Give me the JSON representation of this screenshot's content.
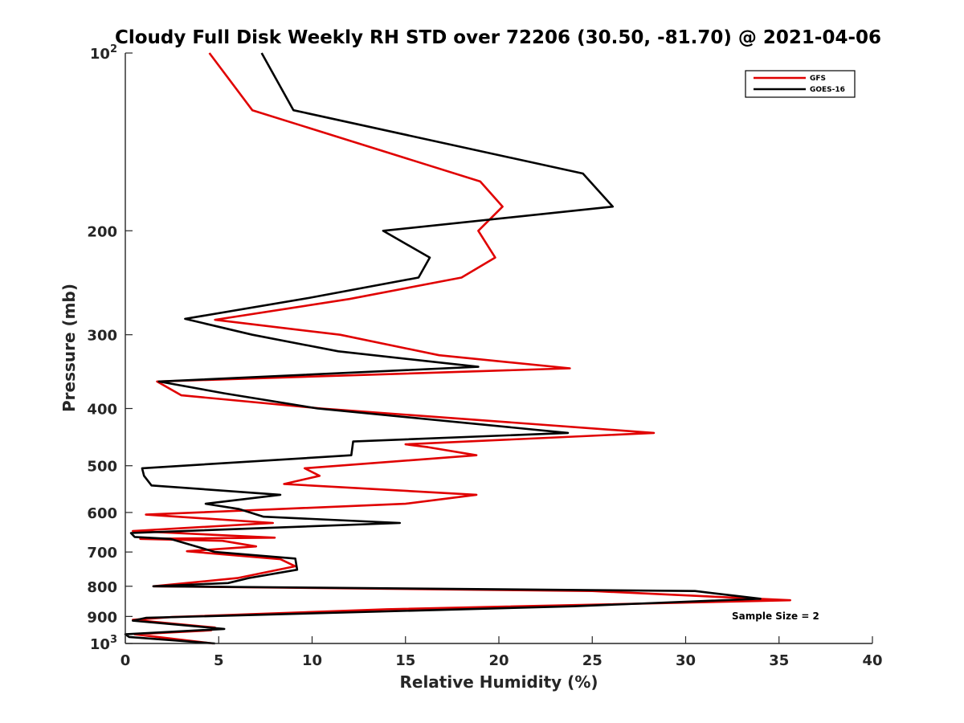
{
  "chart_data": {
    "type": "line",
    "title": "Cloudy Full Disk Weekly RH STD over 72206 (30.50, -81.70) @ 2021-04-06",
    "xlabel": "Relative Humidity (%)",
    "ylabel": "Pressure (mb)",
    "xlim": [
      0,
      40
    ],
    "ylim": [
      100,
      1000
    ],
    "yscale": "log",
    "yreverse": true,
    "x_ticks": [
      0,
      5,
      10,
      15,
      20,
      25,
      30,
      35,
      40
    ],
    "x_tick_labels": [
      "0",
      "5",
      "10",
      "15",
      "20",
      "25",
      "30",
      "35",
      "40"
    ],
    "y_ticks": [
      100,
      200,
      300,
      400,
      500,
      600,
      700,
      800,
      900,
      1000
    ],
    "y_tick_labels": [
      "10²",
      "200",
      "300",
      "400",
      "500",
      "600",
      "700",
      "800",
      "900",
      "10³"
    ],
    "legend_position": "top-right",
    "annotation": "Sample Size = 2",
    "series": [
      {
        "name": "GFS",
        "color": "#e00000",
        "x": [
          4.5,
          6.8,
          19.0,
          20.2,
          18.9,
          19.8,
          18.0,
          12.0,
          4.8,
          11.5,
          16.8,
          23.8,
          1.7,
          3.0,
          10.5,
          28.3,
          15.0,
          16.2,
          18.8,
          9.6,
          10.4,
          8.5,
          18.8,
          15.0,
          1.1,
          7.9,
          0.4,
          8.0,
          0.8,
          5.2,
          7.0,
          3.3,
          8.3,
          9.1,
          6.0,
          1.5,
          25.0,
          35.6,
          14.0,
          2.5,
          0.4,
          4.8,
          4.6,
          0.5,
          4.7
        ],
        "y": [
          100,
          125,
          165,
          182,
          200,
          222,
          240,
          261,
          283,
          300,
          325,
          342,
          360,
          380,
          400,
          440,
          460,
          465,
          480,
          505,
          520,
          537,
          560,
          580,
          605,
          625,
          645,
          662,
          665,
          670,
          685,
          698,
          720,
          740,
          775,
          800,
          815,
          845,
          875,
          902,
          912,
          940,
          950,
          965,
          1000
        ]
      },
      {
        "name": "GOES-16",
        "color": "#000000",
        "x": [
          7.3,
          9.0,
          24.5,
          26.1,
          13.8,
          16.3,
          15.7,
          9.8,
          3.2,
          6.8,
          11.4,
          18.9,
          1.8,
          5.3,
          10.3,
          23.7,
          12.2,
          12.1,
          0.9,
          1.0,
          1.4,
          8.3,
          4.3,
          6.1,
          7.4,
          14.7,
          0.3,
          0.5,
          2.4,
          3.8,
          4.8,
          9.1,
          9.2,
          6.6,
          5.5,
          1.5,
          30.5,
          34.0,
          24.0,
          1.1,
          0.4,
          5.3,
          0.0,
          0.2,
          4.8
        ],
        "y": [
          100,
          125,
          160,
          182,
          200,
          222,
          240,
          260,
          282,
          300,
          320,
          340,
          360,
          377,
          400,
          440,
          455,
          480,
          505,
          520,
          540,
          560,
          580,
          592,
          610,
          625,
          650,
          660,
          665,
          685,
          700,
          718,
          750,
          775,
          790,
          800,
          815,
          840,
          865,
          905,
          915,
          945,
          965,
          975,
          1000
        ]
      }
    ]
  }
}
